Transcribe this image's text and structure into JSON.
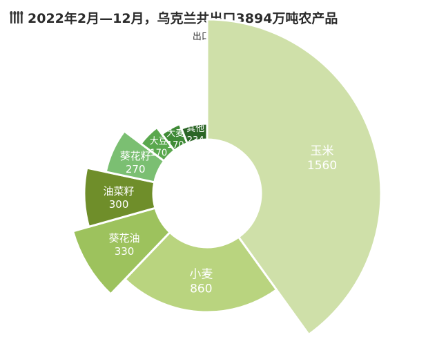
{
  "title": "2022年2月—12月，乌克兰共出口3894万吨农产品",
  "title_icon": "wheat-icon",
  "chart_data": {
    "type": "pie",
    "subtitle": "出口量(万吨)",
    "categories": [
      "玉米",
      "小麦",
      "葵花油",
      "油菜籽",
      "葵花籽",
      "大豆",
      "大麦",
      "其他"
    ],
    "values": [
      1560,
      860,
      330,
      300,
      270,
      170,
      170,
      234
    ],
    "colors": [
      "#cfe0a9",
      "#b9d47f",
      "#9dc25d",
      "#6f8e2a",
      "#7bbf72",
      "#5aa84e",
      "#3f8a36",
      "#2b6526"
    ],
    "label_colors": [
      "#ffffff",
      "#ffffff",
      "#ffffff",
      "#ffffff",
      "#ffffff",
      "#ffffff",
      "#ffffff",
      "#ffffff"
    ],
    "legend": "none"
  }
}
